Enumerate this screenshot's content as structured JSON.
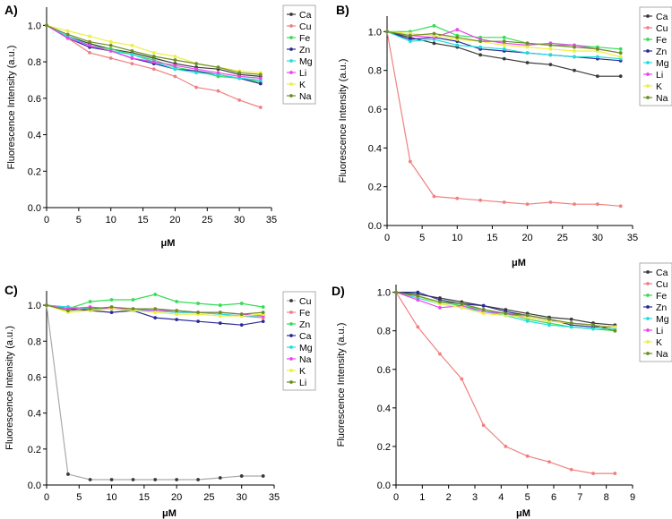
{
  "chart_data": [
    {
      "panel_label": "A)",
      "type": "line",
      "xlabel": "μM",
      "ylabel": "Fluorescence Intensity (a.u.)",
      "xlim": [
        0,
        35
      ],
      "ylim": [
        0,
        1.1
      ],
      "xticks": [
        0,
        5,
        10,
        15,
        20,
        25,
        30,
        35
      ],
      "yticks": [
        0.0,
        0.2,
        0.4,
        0.6,
        0.8,
        1.0
      ],
      "x": [
        0,
        3.3,
        6.7,
        10,
        13.3,
        16.7,
        20,
        23.3,
        26.7,
        30,
        33.3
      ],
      "series": [
        {
          "name": "Ca",
          "color": "#3a3a3a",
          "values": [
            1.0,
            0.94,
            0.9,
            0.87,
            0.85,
            0.82,
            0.79,
            0.77,
            0.76,
            0.73,
            0.72
          ]
        },
        {
          "name": "Cu",
          "color": "#f08080",
          "values": [
            1.0,
            0.93,
            0.85,
            0.82,
            0.79,
            0.76,
            0.72,
            0.66,
            0.64,
            0.59,
            0.55
          ]
        },
        {
          "name": "Fe",
          "color": "#33dd55",
          "values": [
            1.0,
            0.94,
            0.89,
            0.87,
            0.84,
            0.81,
            0.77,
            0.75,
            0.72,
            0.71,
            0.69
          ]
        },
        {
          "name": "Zn",
          "color": "#2a2a9a",
          "values": [
            1.0,
            0.93,
            0.88,
            0.86,
            0.82,
            0.79,
            0.76,
            0.75,
            0.73,
            0.71,
            0.68
          ]
        },
        {
          "name": "Mg",
          "color": "#22dddd",
          "values": [
            1.0,
            0.94,
            0.89,
            0.86,
            0.84,
            0.8,
            0.76,
            0.74,
            0.73,
            0.71,
            0.7
          ]
        },
        {
          "name": "Li",
          "color": "#ee44ee",
          "values": [
            1.0,
            0.93,
            0.89,
            0.86,
            0.82,
            0.8,
            0.78,
            0.76,
            0.74,
            0.72,
            0.71
          ]
        },
        {
          "name": "K",
          "color": "#eeee44",
          "values": [
            1.0,
            0.97,
            0.94,
            0.91,
            0.89,
            0.85,
            0.83,
            0.79,
            0.77,
            0.75,
            0.74
          ]
        },
        {
          "name": "Na",
          "color": "#6b8e23",
          "values": [
            1.0,
            0.95,
            0.91,
            0.89,
            0.86,
            0.83,
            0.81,
            0.79,
            0.77,
            0.74,
            0.73
          ]
        }
      ]
    },
    {
      "panel_label": "B)",
      "type": "line",
      "xlabel": "μM",
      "ylabel": "Fluorescence Intensity (a.u.)",
      "xlim": [
        0,
        35
      ],
      "ylim": [
        0,
        1.08
      ],
      "xticks": [
        0,
        5,
        10,
        15,
        20,
        25,
        30,
        35
      ],
      "yticks": [
        0.0,
        0.2,
        0.4,
        0.6,
        0.8,
        1.0
      ],
      "x": [
        0,
        3.3,
        6.7,
        10,
        13.3,
        16.7,
        20,
        23.3,
        26.7,
        30,
        33.3
      ],
      "series": [
        {
          "name": "Ca",
          "color": "#3a3a3a",
          "values": [
            1.0,
            0.97,
            0.94,
            0.92,
            0.88,
            0.86,
            0.84,
            0.83,
            0.8,
            0.77,
            0.77
          ]
        },
        {
          "name": "Cu",
          "color": "#f08080",
          "values": [
            1.0,
            0.33,
            0.15,
            0.14,
            0.13,
            0.12,
            0.11,
            0.12,
            0.11,
            0.11,
            0.1
          ]
        },
        {
          "name": "Fe",
          "color": "#33dd55",
          "values": [
            1.0,
            1.0,
            1.03,
            0.98,
            0.97,
            0.97,
            0.94,
            0.93,
            0.93,
            0.92,
            0.91
          ]
        },
        {
          "name": "Zn",
          "color": "#2a2a9a",
          "values": [
            1.0,
            0.96,
            0.97,
            0.95,
            0.91,
            0.9,
            0.89,
            0.88,
            0.87,
            0.86,
            0.85
          ]
        },
        {
          "name": "Mg",
          "color": "#22dddd",
          "values": [
            1.0,
            0.95,
            0.96,
            0.93,
            0.92,
            0.91,
            0.89,
            0.88,
            0.87,
            0.87,
            0.86
          ]
        },
        {
          "name": "Li",
          "color": "#ee44ee",
          "values": [
            1.0,
            0.98,
            0.97,
            1.01,
            0.96,
            0.94,
            0.93,
            0.94,
            0.93,
            0.91,
            0.89
          ]
        },
        {
          "name": "K",
          "color": "#eeee44",
          "values": [
            1.0,
            0.99,
            0.98,
            0.96,
            0.95,
            0.93,
            0.92,
            0.91,
            0.9,
            0.9,
            0.87
          ]
        },
        {
          "name": "Na",
          "color": "#6b8e23",
          "values": [
            1.0,
            0.98,
            0.99,
            0.97,
            0.95,
            0.95,
            0.94,
            0.93,
            0.92,
            0.91,
            0.89
          ]
        }
      ]
    },
    {
      "panel_label": "C)",
      "type": "line",
      "xlabel": "μM",
      "ylabel": "Fluorescence Intensity (a.u.)",
      "xlim": [
        0,
        35
      ],
      "ylim": [
        0,
        1.08
      ],
      "xticks": [
        0,
        5,
        10,
        15,
        20,
        25,
        30,
        35
      ],
      "yticks": [
        0.0,
        0.2,
        0.4,
        0.6,
        0.8,
        1.0
      ],
      "x": [
        0,
        3.3,
        6.7,
        10,
        13.3,
        16.7,
        20,
        23.3,
        26.7,
        30,
        33.3
      ],
      "series": [
        {
          "name": "Cu",
          "color": "#3a3a3a",
          "line_color": "#aaaaaa",
          "values": [
            1.0,
            0.06,
            0.03,
            0.03,
            0.03,
            0.03,
            0.03,
            0.03,
            0.04,
            0.05,
            0.05
          ]
        },
        {
          "name": "Fe",
          "color": "#f08080",
          "values": [
            1.0,
            0.99,
            0.98,
            0.98,
            0.97,
            0.97,
            0.96,
            0.96,
            0.95,
            0.94,
            0.93
          ]
        },
        {
          "name": "Zn",
          "color": "#33dd55",
          "values": [
            1.0,
            0.98,
            1.02,
            1.03,
            1.03,
            1.06,
            1.02,
            1.01,
            1.0,
            1.01,
            0.99
          ]
        },
        {
          "name": "Ca",
          "color": "#2a2a9a",
          "values": [
            1.0,
            0.98,
            0.97,
            0.96,
            0.97,
            0.93,
            0.92,
            0.91,
            0.9,
            0.89,
            0.91
          ]
        },
        {
          "name": "Mg",
          "color": "#22dddd",
          "values": [
            1.0,
            0.99,
            0.98,
            0.98,
            0.97,
            0.97,
            0.96,
            0.96,
            0.95,
            0.94,
            0.94
          ]
        },
        {
          "name": "Na",
          "color": "#ee44ee",
          "values": [
            1.0,
            0.98,
            0.99,
            0.98,
            0.98,
            0.97,
            0.97,
            0.96,
            0.96,
            0.95,
            0.94
          ]
        },
        {
          "name": "K",
          "color": "#eeee44",
          "values": [
            1.0,
            0.96,
            0.97,
            0.98,
            0.97,
            0.96,
            0.95,
            0.95,
            0.94,
            0.94,
            0.95
          ]
        },
        {
          "name": "Li",
          "color": "#6b8e23",
          "values": [
            1.0,
            0.97,
            0.98,
            0.99,
            0.98,
            0.98,
            0.97,
            0.96,
            0.96,
            0.95,
            0.96
          ]
        }
      ]
    },
    {
      "panel_label": "D)",
      "type": "line",
      "xlabel": "μM",
      "ylabel": "Fluorescence Intensity (a.u.)",
      "xlim": [
        0,
        9
      ],
      "ylim": [
        0,
        1.04
      ],
      "xticks": [
        0,
        1,
        2,
        3,
        4,
        5,
        6,
        7,
        8,
        9
      ],
      "yticks": [
        0.0,
        0.2,
        0.4,
        0.6,
        0.8,
        1.0
      ],
      "x": [
        0,
        0.83,
        1.67,
        2.5,
        3.33,
        4.17,
        5.0,
        5.83,
        6.67,
        7.5,
        8.33
      ],
      "series": [
        {
          "name": "Ca",
          "color": "#3a3a3a",
          "values": [
            1.0,
            0.99,
            0.97,
            0.95,
            0.93,
            0.91,
            0.89,
            0.87,
            0.86,
            0.84,
            0.83
          ]
        },
        {
          "name": "Cu",
          "color": "#f08080",
          "values": [
            1.0,
            0.82,
            0.68,
            0.55,
            0.31,
            0.2,
            0.15,
            0.12,
            0.08,
            0.06,
            0.06
          ]
        },
        {
          "name": "Fe",
          "color": "#33dd55",
          "values": [
            1.0,
            0.98,
            0.95,
            0.93,
            0.91,
            0.89,
            0.86,
            0.84,
            0.82,
            0.81,
            0.8
          ]
        },
        {
          "name": "Zn",
          "color": "#2a2a9a",
          "values": [
            1.0,
            1.0,
            0.96,
            0.94,
            0.93,
            0.9,
            0.88,
            0.86,
            0.83,
            0.82,
            0.82
          ]
        },
        {
          "name": "Mg",
          "color": "#22dddd",
          "values": [
            1.0,
            0.97,
            0.94,
            0.92,
            0.9,
            0.88,
            0.85,
            0.83,
            0.82,
            0.81,
            0.81
          ]
        },
        {
          "name": "Li",
          "color": "#ee44ee",
          "values": [
            1.0,
            0.96,
            0.92,
            0.93,
            0.9,
            0.89,
            0.87,
            0.85,
            0.84,
            0.83,
            0.82
          ]
        },
        {
          "name": "K",
          "color": "#eeee44",
          "values": [
            1.0,
            0.98,
            0.94,
            0.92,
            0.89,
            0.88,
            0.87,
            0.85,
            0.84,
            0.83,
            0.82
          ]
        },
        {
          "name": "Na",
          "color": "#6b8e23",
          "values": [
            1.0,
            0.98,
            0.95,
            0.94,
            0.91,
            0.89,
            0.88,
            0.86,
            0.84,
            0.83,
            0.8
          ]
        }
      ]
    }
  ]
}
